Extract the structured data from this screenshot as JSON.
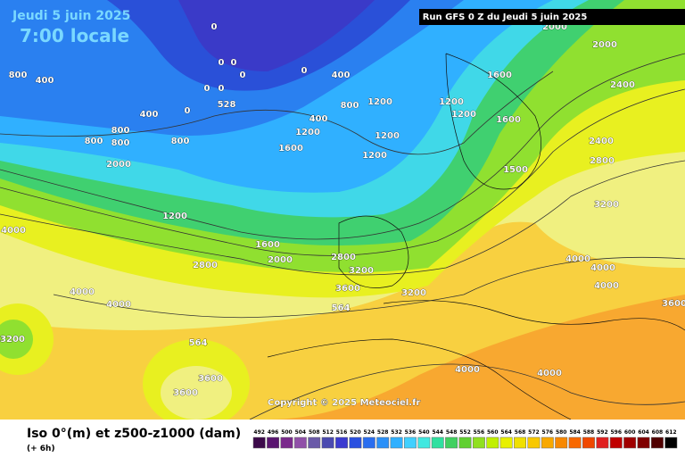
{
  "header": {
    "date": "Jeudi 5 juin 2025",
    "time": "7:00 locale",
    "run": "Run GFS 0 Z du Jeudi 5 juin 2025"
  },
  "copyright": "Copyright © 2025 Meteociel.fr",
  "footer": {
    "title": "Iso 0°(m) et z500-z1000 (dam)",
    "lead": "(+ 6h)"
  },
  "legend": {
    "values": [
      492,
      496,
      500,
      504,
      508,
      512,
      516,
      520,
      524,
      528,
      532,
      536,
      540,
      544,
      548,
      552,
      556,
      560,
      564,
      568,
      572,
      576,
      580,
      584,
      588,
      592,
      596,
      600,
      604,
      608,
      612
    ],
    "colors": [
      "#3c0a4a",
      "#5a1470",
      "#7a2a8c",
      "#9050a8",
      "#6a5aa8",
      "#4a4ab0",
      "#3a3ad0",
      "#2a50e0",
      "#2a6ef0",
      "#2a90f8",
      "#30b0ff",
      "#40d0ff",
      "#40e8e0",
      "#30e0a0",
      "#40d060",
      "#60d030",
      "#90e020",
      "#c0f000",
      "#e8f000",
      "#f0e000",
      "#f8c800",
      "#f8a800",
      "#f88800",
      "#f86800",
      "#f04800",
      "#e02020",
      "#c00000",
      "#a00000",
      "#800000",
      "#500000",
      "#000000"
    ]
  },
  "contour_labels": [
    0,
    0,
    0,
    0,
    0,
    0,
    0,
    0,
    400,
    800,
    400,
    800,
    800,
    800,
    2000,
    800,
    400,
    400,
    800,
    1200,
    1600,
    1200,
    1200,
    1200,
    1600,
    1200,
    1200,
    1600,
    1500,
    2000,
    2000,
    2400,
    2400,
    2800,
    3200,
    1200,
    1600,
    2000,
    2800,
    2800,
    3200,
    3600,
    3200,
    4000,
    4000,
    4000,
    4000,
    4000,
    4000,
    3600,
    3600,
    4000,
    4000,
    3200,
    3600,
    528,
    564,
    564
  ]
}
